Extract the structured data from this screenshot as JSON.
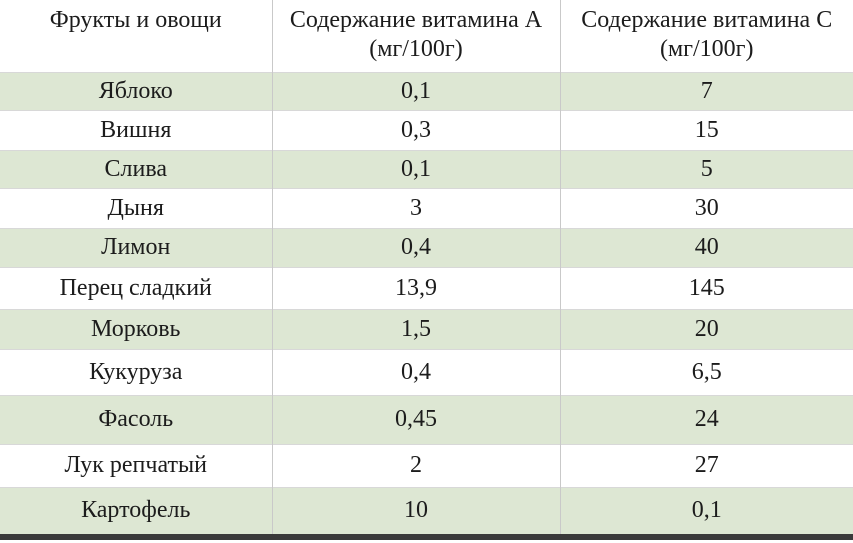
{
  "table": {
    "header": [
      "Фрукты и овощи",
      "Содержание витамина А (мг/100г)",
      "Содержание витамина С (мг/100г)"
    ],
    "rows": [
      [
        "Яблоко",
        "0,1",
        "7"
      ],
      [
        "Вишня",
        "0,3",
        "15"
      ],
      [
        "Слива",
        "0,1",
        "5"
      ],
      [
        "Дыня",
        "3",
        "30"
      ],
      [
        "Лимон",
        "0,4",
        "40"
      ],
      [
        "Перец сладкий",
        "13,9",
        "145"
      ],
      [
        "Морковь",
        "1,5",
        "20"
      ],
      [
        "Кукуруза",
        "0,4",
        "6,5"
      ],
      [
        "Фасоль",
        "0,45",
        "24"
      ],
      [
        "Лук репчатый",
        "2",
        "27"
      ],
      [
        "Картофель",
        "10",
        "0,1"
      ]
    ]
  }
}
